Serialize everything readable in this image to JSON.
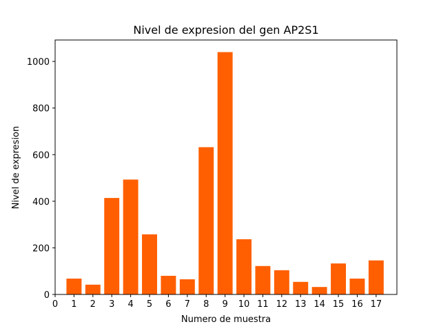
{
  "chart_data": {
    "type": "bar",
    "title": "Nivel de expresion del gen AP2S1",
    "xlabel": "Numero de muestra",
    "ylabel": "Nivel de expresion",
    "x_ticks": [
      "0",
      "1",
      "2",
      "3",
      "4",
      "5",
      "6",
      "7",
      "8",
      "9",
      "10",
      "11",
      "12",
      "13",
      "14",
      "15",
      "16",
      "17"
    ],
    "y_ticks": [
      "0",
      "200",
      "400",
      "600",
      "800",
      "1000"
    ],
    "categories": [
      1,
      2,
      3,
      4,
      5,
      6,
      7,
      8,
      9,
      10,
      11,
      12,
      13,
      14,
      15,
      16,
      17
    ],
    "values": [
      68,
      42,
      414,
      493,
      258,
      80,
      65,
      632,
      1040,
      237,
      122,
      104,
      54,
      32,
      133,
      68,
      146
    ],
    "xlim": [
      0,
      18.1
    ],
    "ylim": [
      0,
      1092
    ],
    "bar_color": "#ff5f00",
    "grid": false,
    "legend": "none"
  }
}
